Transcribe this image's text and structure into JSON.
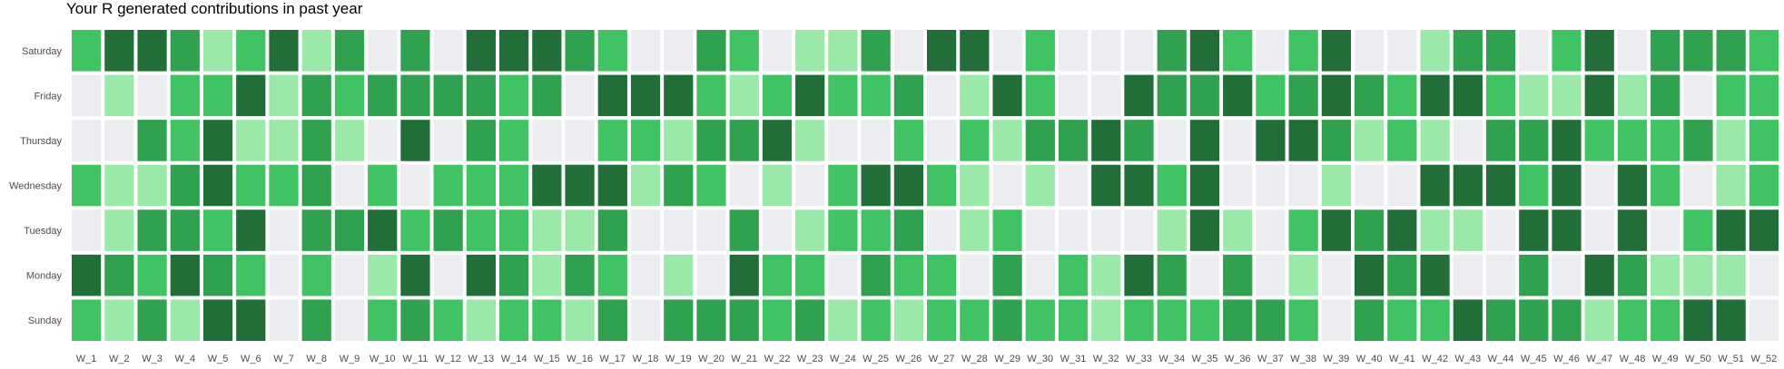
{
  "title": "Your R generated contributions in past year",
  "chart_data": {
    "type": "heatmap",
    "title": "Your R generated contributions in past year",
    "xlabel": "",
    "ylabel": "",
    "x_categories": [
      "W_1",
      "W_2",
      "W_3",
      "W_4",
      "W_5",
      "W_6",
      "W_7",
      "W_8",
      "W_9",
      "W_10",
      "W_11",
      "W_12",
      "W_13",
      "W_14",
      "W_15",
      "W_16",
      "W_17",
      "W_18",
      "W_19",
      "W_20",
      "W_21",
      "W_22",
      "W_23",
      "W_24",
      "W_25",
      "W_26",
      "W_27",
      "W_28",
      "W_29",
      "W_30",
      "W_31",
      "W_32",
      "W_33",
      "W_34",
      "W_35",
      "W_36",
      "W_37",
      "W_38",
      "W_39",
      "W_40",
      "W_41",
      "W_42",
      "W_43",
      "W_44",
      "W_45",
      "W_46",
      "W_47",
      "W_48",
      "W_49",
      "W_50",
      "W_51",
      "W_52"
    ],
    "y_categories": [
      "Saturday",
      "Friday",
      "Thursday",
      "Wednesday",
      "Tuesday",
      "Monday",
      "Sunday"
    ],
    "levels": [
      0,
      1,
      2,
      3,
      4
    ],
    "level_colors": [
      "#ebedf0",
      "#9be9a8",
      "#40c463",
      "#30a14e",
      "#216e39"
    ],
    "grid": false,
    "legend": "none",
    "values": [
      [
        2,
        4,
        4,
        3,
        1,
        2,
        4,
        1,
        3,
        0,
        3,
        0,
        4,
        4,
        4,
        3,
        2,
        0,
        0,
        3,
        2,
        0,
        1,
        1,
        3,
        0,
        4,
        4,
        0,
        2,
        0,
        0,
        0,
        3,
        4,
        2,
        0,
        2,
        4,
        0,
        0,
        1,
        3,
        3,
        0,
        2,
        4,
        0,
        3,
        3,
        3,
        2
      ],
      [
        0,
        1,
        0,
        2,
        2,
        4,
        1,
        3,
        2,
        3,
        3,
        3,
        3,
        2,
        3,
        0,
        4,
        4,
        4,
        2,
        1,
        2,
        4,
        2,
        2,
        3,
        0,
        1,
        4,
        2,
        0,
        0,
        4,
        3,
        3,
        4,
        2,
        3,
        4,
        3,
        2,
        4,
        4,
        2,
        1,
        1,
        4,
        1,
        3,
        0,
        2,
        2
      ],
      [
        0,
        0,
        3,
        2,
        4,
        1,
        1,
        3,
        1,
        0,
        4,
        0,
        3,
        2,
        0,
        0,
        2,
        2,
        1,
        3,
        3,
        4,
        1,
        0,
        0,
        2,
        0,
        2,
        1,
        3,
        3,
        4,
        3,
        0,
        4,
        0,
        4,
        4,
        3,
        1,
        2,
        1,
        0,
        3,
        3,
        4,
        2,
        2,
        2,
        3,
        1,
        2
      ],
      [
        2,
        1,
        1,
        3,
        4,
        2,
        2,
        3,
        0,
        2,
        0,
        2,
        2,
        2,
        4,
        4,
        4,
        1,
        3,
        2,
        0,
        1,
        0,
        2,
        4,
        4,
        2,
        1,
        0,
        1,
        0,
        4,
        4,
        2,
        4,
        0,
        0,
        0,
        1,
        0,
        0,
        4,
        4,
        4,
        2,
        4,
        0,
        4,
        2,
        0,
        1,
        2
      ],
      [
        0,
        1,
        3,
        3,
        2,
        4,
        0,
        3,
        3,
        4,
        2,
        3,
        2,
        2,
        1,
        1,
        3,
        0,
        0,
        0,
        3,
        0,
        1,
        2,
        2,
        3,
        0,
        1,
        2,
        0,
        0,
        0,
        0,
        1,
        4,
        1,
        0,
        2,
        4,
        3,
        4,
        1,
        1,
        0,
        4,
        4,
        0,
        4,
        0,
        2,
        4,
        4
      ],
      [
        4,
        3,
        2,
        4,
        3,
        2,
        0,
        2,
        0,
        1,
        4,
        0,
        4,
        3,
        1,
        3,
        2,
        0,
        1,
        0,
        4,
        2,
        2,
        0,
        3,
        2,
        2,
        0,
        3,
        0,
        2,
        1,
        4,
        3,
        0,
        3,
        0,
        1,
        0,
        4,
        3,
        4,
        0,
        0,
        3,
        0,
        4,
        3,
        1,
        1,
        1,
        0
      ],
      [
        2,
        1,
        3,
        1,
        4,
        4,
        0,
        3,
        0,
        2,
        3,
        2,
        1,
        2,
        2,
        1,
        3,
        0,
        3,
        3,
        3,
        2,
        3,
        1,
        2,
        1,
        2,
        2,
        3,
        2,
        2,
        1,
        2,
        2,
        2,
        3,
        3,
        2,
        0,
        3,
        2,
        2,
        4,
        3,
        3,
        3,
        1,
        2,
        2,
        4,
        4,
        0
      ]
    ]
  }
}
